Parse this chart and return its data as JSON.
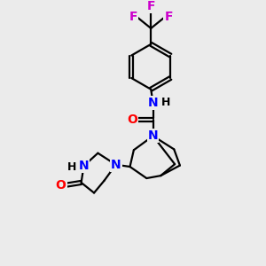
{
  "background_color": "#ebebeb",
  "atom_colors": {
    "C": "#000000",
    "N": "#0000ff",
    "O": "#ff0000",
    "F": "#cc00cc",
    "H": "#000000"
  },
  "bond_color": "#000000",
  "bond_width": 1.6,
  "font_size_atom": 10,
  "fig_w": 3.0,
  "fig_h": 3.0,
  "dpi": 100
}
